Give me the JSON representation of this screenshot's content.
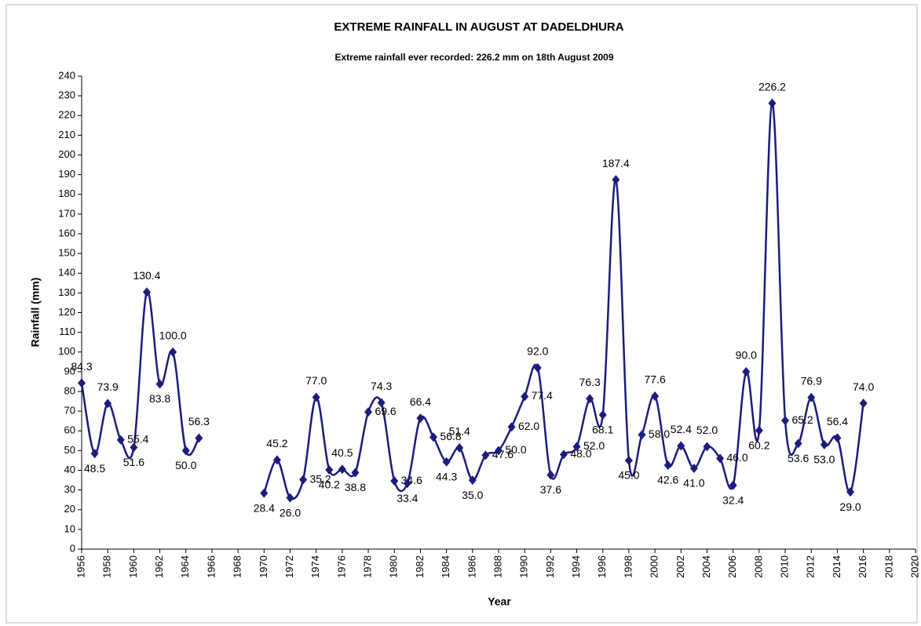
{
  "chart_data": {
    "type": "line",
    "title": "EXTREME RAINFALL  IN AUGUST AT DADELDHURA",
    "subtitle": "Extreme rainfall ever recorded: 226.2 mm on 18th August 2009",
    "x_label": "Year",
    "y_label": "Rainfall  (mm)",
    "x": [
      1956,
      1957,
      1958,
      1959,
      1960,
      1961,
      1962,
      1963,
      1964,
      1965,
      1966,
      1967,
      1968,
      1969,
      1970,
      1971,
      1972,
      1973,
      1974,
      1975,
      1976,
      1977,
      1978,
      1979,
      1980,
      1981,
      1982,
      1983,
      1984,
      1985,
      1986,
      1987,
      1988,
      1989,
      1990,
      1991,
      1992,
      1993,
      1994,
      1995,
      1996,
      1997,
      1998,
      1999,
      2000,
      2001,
      2002,
      2003,
      2004,
      2005,
      2006,
      2007,
      2008,
      2009,
      2010,
      2011,
      2012,
      2013,
      2014,
      2015,
      2016
    ],
    "series": [
      {
        "name": "Rainfall",
        "color": "#1c1c7c",
        "values": [
          84.3,
          48.5,
          73.9,
          55.4,
          51.6,
          130.4,
          83.8,
          100.0,
          50.0,
          56.3,
          null,
          null,
          null,
          null,
          28.4,
          45.2,
          26.0,
          35.2,
          77.0,
          40.2,
          40.5,
          38.8,
          69.6,
          74.3,
          34.6,
          33.4,
          66.4,
          56.8,
          44.3,
          51.4,
          35.0,
          47.6,
          50.0,
          62.0,
          77.4,
          92.0,
          37.6,
          48.0,
          52.0,
          76.3,
          68.1,
          187.4,
          45.0,
          58.0,
          77.6,
          42.6,
          52.4,
          41.0,
          52.0,
          46.0,
          32.4,
          90.0,
          60.2,
          226.2,
          65.2,
          53.6,
          76.9,
          53.0,
          56.4,
          29.0,
          74.0
        ],
        "value_labels": [
          "84.3",
          "48.5",
          "73.9",
          "55.4",
          "51.6",
          "130.4",
          "83.8",
          "100.0",
          "50.0",
          "56.3",
          null,
          null,
          null,
          null,
          "28.4",
          "45.2",
          "26.0",
          "35.2",
          "77.0",
          "40.2",
          "40.5",
          "38.8",
          "69.6",
          "74.3",
          "34.6",
          "33.4",
          "66.4",
          "56.8",
          "44.3",
          "51.4",
          "35.0",
          "47.6",
          "50.0",
          "62.0",
          "77.4",
          "92.0",
          "37.6",
          "48.0",
          "52.0",
          "76.3",
          "68.1",
          "187.4",
          "45.0",
          "58.0",
          "77.6",
          "42.6",
          "52.4",
          "41.0",
          "52.0",
          "46.0",
          "32.4",
          "90.0",
          "60.2",
          "226.2",
          "65.2",
          "53.6",
          "76.9",
          "53.0",
          "56.4",
          "29.0",
          "74.0"
        ]
      }
    ],
    "xlim": [
      1956,
      2020
    ],
    "xticks": [
      1956,
      1958,
      1960,
      1962,
      1964,
      1966,
      1968,
      1970,
      1972,
      1974,
      1976,
      1978,
      1980,
      1982,
      1984,
      1986,
      1988,
      1990,
      1992,
      1994,
      1996,
      1998,
      2000,
      2002,
      2004,
      2006,
      2008,
      2010,
      2012,
      2014,
      2016,
      2018,
      2020
    ],
    "ylim": [
      0,
      240
    ],
    "yticks": [
      0,
      10,
      20,
      30,
      40,
      50,
      60,
      70,
      80,
      90,
      100,
      110,
      120,
      130,
      140,
      150,
      160,
      170,
      180,
      190,
      200,
      210,
      220,
      230,
      240
    ],
    "grid": false
  }
}
